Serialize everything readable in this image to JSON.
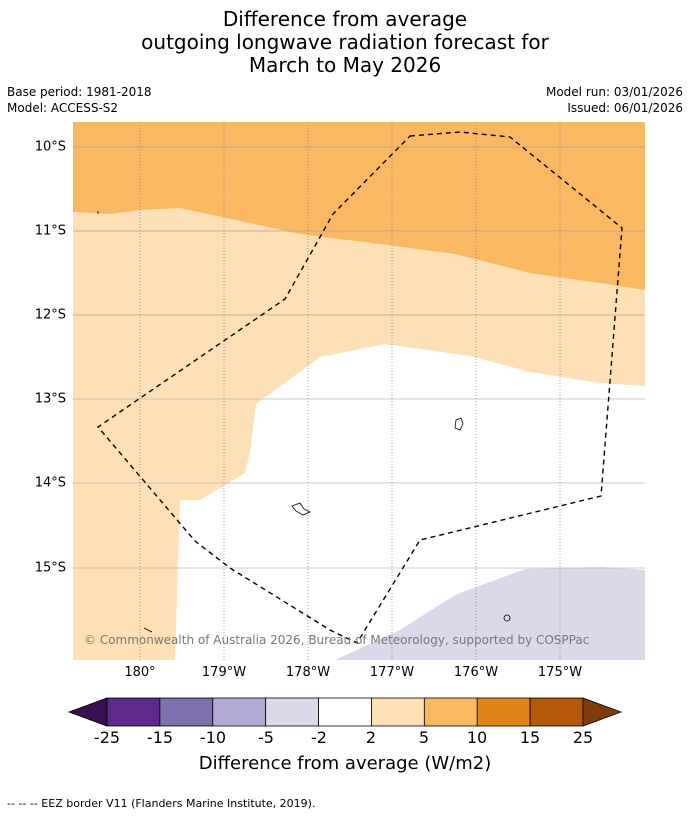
{
  "title": {
    "line1": "Difference from average",
    "line2": "outgoing longwave radiation forecast for",
    "line3": "March to May 2026"
  },
  "meta": {
    "base_period": "Base period: 1981-2018",
    "model": "Model: ACCESS-S2",
    "model_run": "Model run: 03/01/2026",
    "issued": "Issued: 06/01/2026"
  },
  "map": {
    "latitude_labels": [
      "10°S",
      "11°S",
      "12°S",
      "13°S",
      "14°S",
      "15°S"
    ],
    "longitude_labels": [
      "180°",
      "179°W",
      "178°W",
      "177°W",
      "176°W",
      "175°W"
    ],
    "copyright": "© Commonwealth of Australia 2026, Bureau of Meteorology, supported by COSPPac"
  },
  "colorbar": {
    "ticks": [
      "-25",
      "-15",
      "-10",
      "-5",
      "-2",
      "2",
      "5",
      "10",
      "15",
      "25"
    ],
    "colors": [
      "#3b0f4f",
      "#5b2a8c",
      "#8070ad",
      "#b3aad4",
      "#d9d9ea",
      "#ffffff",
      "#fde0b5",
      "#fbb862",
      "#e08516",
      "#b35708",
      "#7f3b08"
    ],
    "label": "Difference from average (W/m2)"
  },
  "footnote": "--  --  -- EEZ border V11 (Flanders Marine Institute, 2019)."
}
